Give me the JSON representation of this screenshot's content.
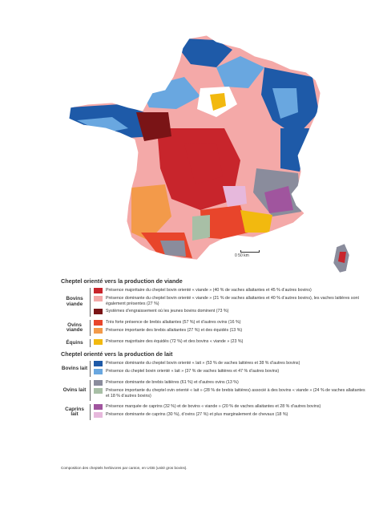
{
  "map": {
    "scale_label": "0      50 km"
  },
  "legend": {
    "meat_title": "Cheptel orienté vers la production de viande",
    "milk_title": "Cheptel orienté vers la production de lait",
    "groups": {
      "bovins_viande": "Bovins viande",
      "ovins_viande": "Ovins viande",
      "equins": "Équins",
      "bovins_lait": "Bovins lait",
      "ovins_lait": "Ovins lait",
      "caprins_lait": "Caprins lait"
    },
    "items": {
      "bv1": {
        "color": "#c8252c",
        "text": "Présence majoritaire du cheptel bovin orienté « viande » (40 % de vaches allaitantes et 45 % d’autres bovins)"
      },
      "bv2": {
        "color": "#f4a9a8",
        "text": "Présence dominante du cheptel bovin orienté « viande » (21 % de vaches allaitantes et 40 % d’autres bovins), les vaches laitières sont également présentes (27 %)"
      },
      "bv3": {
        "color": "#7a1416",
        "text": "Systèmes d’engraissement où les jeunes bovins dominent (73 %)"
      },
      "ov1": {
        "color": "#e8452b",
        "text": "Très forte présence de brebis allaitantes (57 %) et d’autres ovins (16 %)"
      },
      "ov2": {
        "color": "#f39a4a",
        "text": "Présence importante des brebis allaitantes (27 %) et des équidés (13 %)"
      },
      "eq1": {
        "color": "#f2b90f",
        "text": "Présence majoritaire des équidés (72 %) et des bovins « viande » (23 %)"
      },
      "bl1": {
        "color": "#1e5aa8",
        "text": "Présence dominante du cheptel bovin orienté « lait » (53 % de vaches laitières et 38 % d’autres bovins)"
      },
      "bl2": {
        "color": "#69a7e0",
        "text": "Présence du cheptel bovin orienté « lait » (37 % de vaches laitières et 47 % d’autres bovins)"
      },
      "ol1": {
        "color": "#8a8c9c",
        "text": "Présence dominante de brebis laitières (61 %) et d’autres ovins (13 %)"
      },
      "ol2": {
        "color": "#a8bfa6",
        "text": "Présence importante du cheptel ovin orienté « lait » (28 % de brebis laitières) associé à des bovins « viande » (24 % de vaches allaitantes et 18 % d’autres bovins)"
      },
      "cl1": {
        "color": "#a0559e",
        "text": "Présence marquée de caprins (32 %) et de bovins « viande » (20 % de vaches allaitantes et 28 % d’autres bovins)"
      },
      "cl2": {
        "color": "#e6b8dc",
        "text": "Présence dominante de caprins (30 %), d’ovins (27 %) et plus marginalement de chevaux (18 %)"
      }
    }
  },
  "footnote": "Composition des cheptels herbivores par canton, en UGB (unité gros bovins)."
}
